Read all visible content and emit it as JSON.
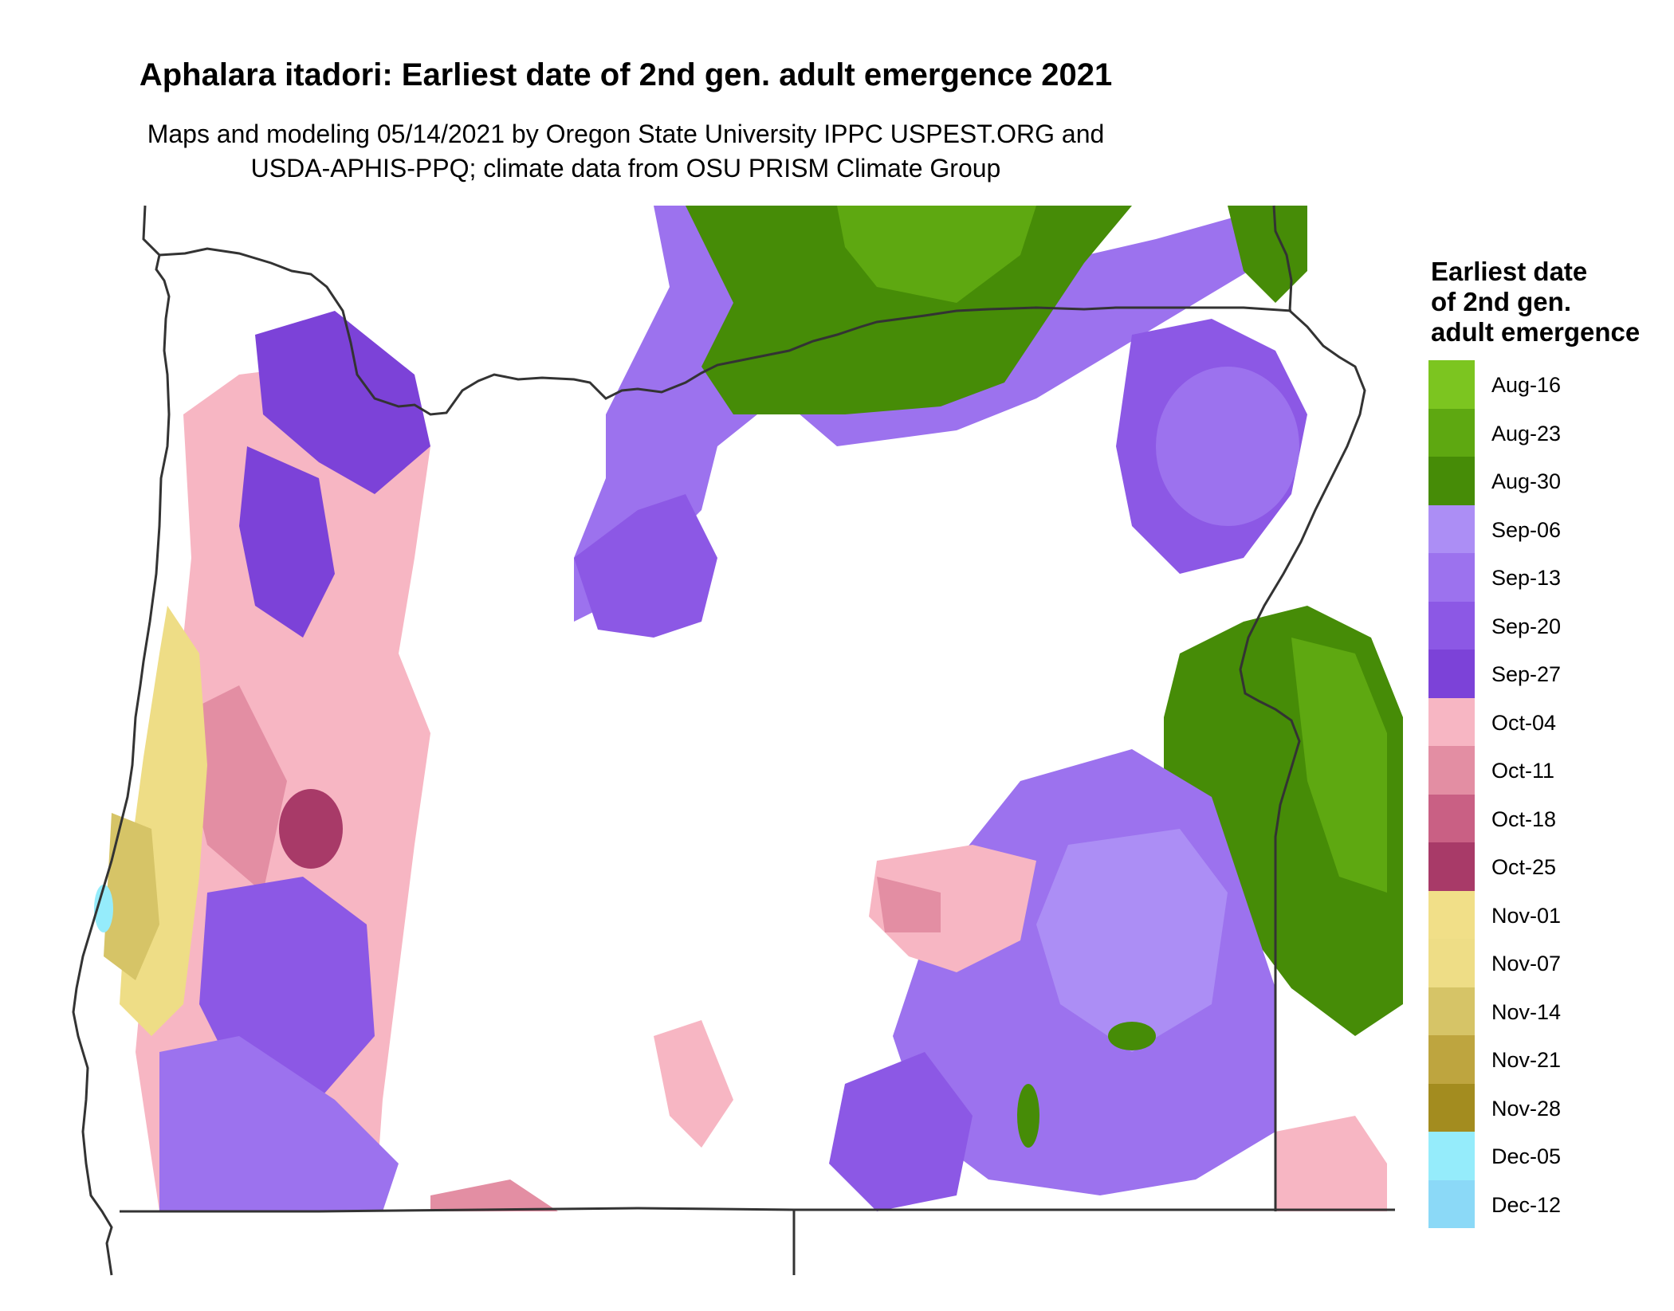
{
  "title": "Aphalara itadori: Earliest date of 2nd gen. adult emergence 2021",
  "subtitle_line1": "Maps and modeling 05/14/2021 by Oregon State University IPPC USPEST.ORG and",
  "subtitle_line2": "USDA-APHIS-PPQ; climate data from OSU PRISM Climate Group",
  "legend": {
    "title_lines": [
      "Earliest date",
      "of 2nd gen.",
      "adult emergence"
    ],
    "items": [
      {
        "label": "Aug-16",
        "color": "#7cc520"
      },
      {
        "label": "Aug-23",
        "color": "#5ea811"
      },
      {
        "label": "Aug-30",
        "color": "#468c07"
      },
      {
        "label": "Sep-06",
        "color": "#ac8ef5"
      },
      {
        "label": "Sep-13",
        "color": "#9c72ee"
      },
      {
        "label": "Sep-20",
        "color": "#8c58e5"
      },
      {
        "label": "Sep-27",
        "color": "#7c42d8"
      },
      {
        "label": "Oct-04",
        "color": "#f7b6c3"
      },
      {
        "label": "Oct-11",
        "color": "#e38ea3"
      },
      {
        "label": "Oct-18",
        "color": "#c96084"
      },
      {
        "label": "Oct-25",
        "color": "#a83a68"
      },
      {
        "label": "Nov-01",
        "color": "#f1df88"
      },
      {
        "label": "Nov-07",
        "color": "#eedd86"
      },
      {
        "label": "Nov-14",
        "color": "#d6c467"
      },
      {
        "label": "Nov-21",
        "color": "#bea53f"
      },
      {
        "label": "Nov-28",
        "color": "#a38c1f"
      },
      {
        "label": "Dec-05",
        "color": "#95ecfb"
      },
      {
        "label": "Dec-12",
        "color": "#8bd9f7"
      }
    ]
  },
  "map": {
    "region": "Oregon",
    "background": "#ffffff",
    "boundary_color": "#333333"
  }
}
